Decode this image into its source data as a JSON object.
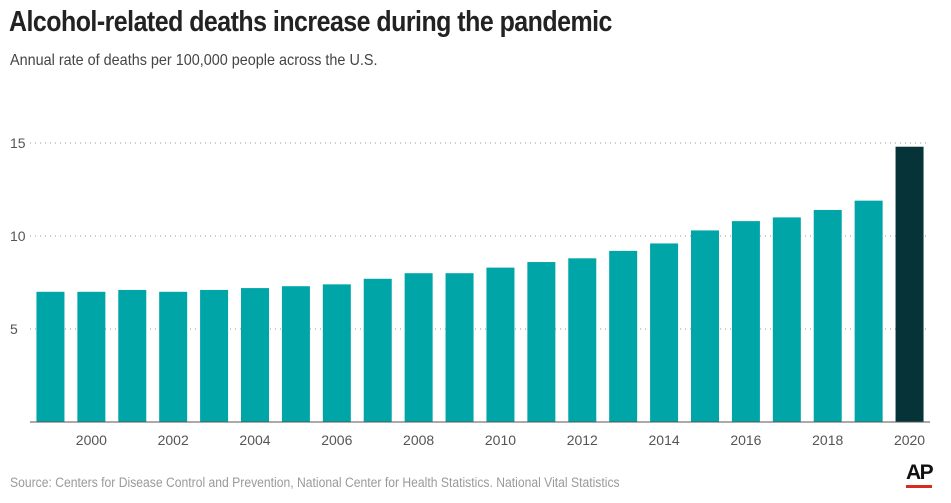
{
  "header": {
    "title": "Alcohol-related deaths increase during the pandemic",
    "subtitle": "Annual rate of deaths per 100,000 people across the U.S."
  },
  "footer": {
    "source": "Source: Centers for Disease Control and Prevention, National Center for Health Statistics. National Vital Statistics",
    "logo": "AP"
  },
  "colors": {
    "bar": "#00a5a8",
    "highlight": "#053337",
    "grid": "#999999",
    "baseline": "#555555",
    "logo_accent": "#d72c1c"
  },
  "chart_data": {
    "type": "bar",
    "title": "Alcohol-related deaths increase during the pandemic",
    "subtitle": "Annual rate of deaths per 100,000 people across the U.S.",
    "xlabel": "",
    "ylabel": "",
    "categories": [
      "1999",
      "2000",
      "2001",
      "2002",
      "2003",
      "2004",
      "2005",
      "2006",
      "2007",
      "2008",
      "2009",
      "2010",
      "2011",
      "2012",
      "2013",
      "2014",
      "2015",
      "2016",
      "2017",
      "2018",
      "2019",
      "2020"
    ],
    "x_tick_labels": [
      "2000",
      "2002",
      "2004",
      "2006",
      "2008",
      "2010",
      "2012",
      "2014",
      "2016",
      "2018",
      "2020"
    ],
    "values": [
      7.0,
      7.0,
      7.1,
      7.0,
      7.1,
      7.2,
      7.3,
      7.4,
      7.7,
      8.0,
      8.0,
      8.3,
      8.6,
      8.8,
      9.2,
      9.6,
      10.3,
      10.8,
      11.0,
      11.4,
      11.9,
      14.8
    ],
    "highlight_category": "2020",
    "ylim": [
      0,
      15
    ],
    "y_ticks": [
      5,
      10,
      15
    ],
    "grid": true,
    "grid_style": "dotted horizontal"
  }
}
